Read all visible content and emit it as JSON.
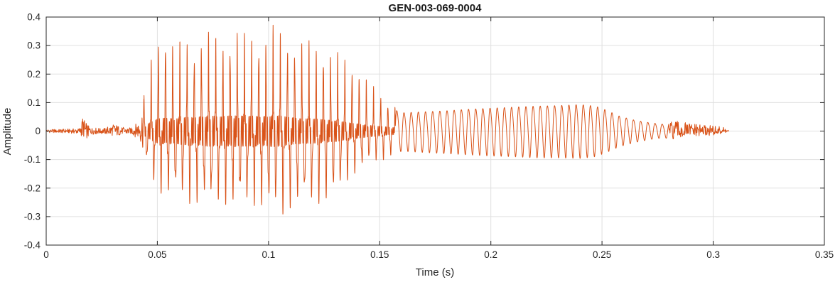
{
  "figure": {
    "background": "#ffffff"
  },
  "chart_data": {
    "type": "line",
    "title": "GEN-003-069-0004",
    "xlabel": "Time (s)",
    "ylabel": "Amplitude",
    "xlim": [
      0,
      0.35
    ],
    "ylim": [
      -0.4,
      0.4
    ],
    "xticks": [
      0,
      0.05,
      0.1,
      0.15,
      0.2,
      0.25,
      0.3,
      0.35
    ],
    "xtick_labels": [
      "0",
      "0.05",
      "0.1",
      "0.15",
      "0.2",
      "0.25",
      "0.3",
      "0.35"
    ],
    "yticks": [
      -0.4,
      -0.3,
      -0.2,
      -0.1,
      0,
      0.1,
      0.2,
      0.3,
      0.4
    ],
    "ytick_labels": [
      "-0.4",
      "-0.3",
      "-0.2",
      "-0.1",
      "0",
      "0.1",
      "0.2",
      "0.3",
      "0.4"
    ],
    "grid": true,
    "legend": null,
    "line_color": "#D95319",
    "axes_color": "#262626",
    "grid_color": "#e0e0e0",
    "waveform": {
      "description": "speech-like waveform: quiet noise, loud voiced burst 0.045-0.155 s (peaks +0.39/-0.33), decaying ~310 Hz sinusoidal tail to ~0.28 s, low noise ending at 0.307 s",
      "t_end": 0.307,
      "envelope": [
        [
          0.0,
          -0.006,
          0.006
        ],
        [
          0.01,
          -0.008,
          0.008
        ],
        [
          0.015,
          -0.01,
          0.01
        ],
        [
          0.0165,
          -0.03,
          0.055
        ],
        [
          0.018,
          -0.035,
          0.03
        ],
        [
          0.02,
          -0.012,
          0.014
        ],
        [
          0.026,
          -0.01,
          0.01
        ],
        [
          0.031,
          -0.022,
          0.028
        ],
        [
          0.033,
          -0.015,
          0.015
        ],
        [
          0.038,
          -0.012,
          0.012
        ],
        [
          0.042,
          -0.03,
          0.04
        ],
        [
          0.046,
          -0.14,
          0.2
        ],
        [
          0.05,
          -0.22,
          0.31
        ],
        [
          0.054,
          -0.23,
          0.355
        ],
        [
          0.058,
          -0.25,
          0.3
        ],
        [
          0.062,
          -0.27,
          0.33
        ],
        [
          0.066,
          -0.3,
          0.31
        ],
        [
          0.07,
          -0.28,
          0.36
        ],
        [
          0.074,
          -0.31,
          0.375
        ],
        [
          0.078,
          -0.29,
          0.34
        ],
        [
          0.082,
          -0.3,
          0.37
        ],
        [
          0.086,
          -0.31,
          0.39
        ],
        [
          0.09,
          -0.3,
          0.355
        ],
        [
          0.094,
          -0.29,
          0.37
        ],
        [
          0.098,
          -0.3,
          0.35
        ],
        [
          0.102,
          -0.31,
          0.375
        ],
        [
          0.106,
          -0.33,
          0.34
        ],
        [
          0.11,
          -0.28,
          0.315
        ],
        [
          0.115,
          -0.26,
          0.3
        ],
        [
          0.12,
          -0.25,
          0.285
        ],
        [
          0.125,
          -0.24,
          0.27
        ],
        [
          0.13,
          -0.215,
          0.25
        ],
        [
          0.135,
          -0.16,
          0.225
        ],
        [
          0.14,
          -0.12,
          0.2
        ],
        [
          0.145,
          -0.1,
          0.16
        ],
        [
          0.15,
          -0.09,
          0.12
        ],
        [
          0.155,
          -0.078,
          0.09
        ],
        [
          0.16,
          -0.068,
          0.072
        ],
        [
          0.17,
          -0.072,
          0.076
        ],
        [
          0.18,
          -0.076,
          0.08
        ],
        [
          0.19,
          -0.08,
          0.086
        ],
        [
          0.2,
          -0.084,
          0.09
        ],
        [
          0.21,
          -0.086,
          0.094
        ],
        [
          0.22,
          -0.09,
          0.098
        ],
        [
          0.23,
          -0.09,
          0.1
        ],
        [
          0.24,
          -0.092,
          0.104
        ],
        [
          0.247,
          -0.086,
          0.098
        ],
        [
          0.252,
          -0.072,
          0.082
        ],
        [
          0.258,
          -0.052,
          0.058
        ],
        [
          0.265,
          -0.038,
          0.042
        ],
        [
          0.272,
          -0.028,
          0.032
        ],
        [
          0.278,
          -0.022,
          0.026
        ],
        [
          0.283,
          -0.034,
          0.038
        ],
        [
          0.288,
          -0.026,
          0.03
        ],
        [
          0.294,
          -0.02,
          0.024
        ],
        [
          0.3,
          -0.018,
          0.02
        ],
        [
          0.305,
          -0.012,
          0.014
        ],
        [
          0.307,
          -0.004,
          0.004
        ]
      ],
      "segments": [
        {
          "t0": 0.0,
          "t1": 0.044,
          "type": "noise",
          "f": 1600
        },
        {
          "t0": 0.044,
          "t1": 0.157,
          "type": "voiced",
          "f0": 310,
          "band_f": 2100
        },
        {
          "t0": 0.157,
          "t1": 0.28,
          "type": "tone",
          "f": 310
        },
        {
          "t0": 0.28,
          "t1": 0.307,
          "type": "noise",
          "f": 1300
        }
      ]
    }
  }
}
